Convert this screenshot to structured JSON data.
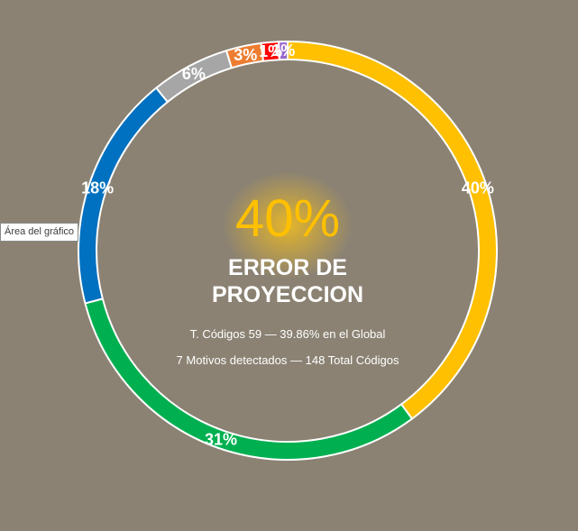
{
  "colors": {
    "background": "#8b8273",
    "ring_border": "#ffffff",
    "label_text": "#ffffff",
    "highlight_text": "#fec000",
    "center_glow": "#f4be1c"
  },
  "tooltip": "Área del gráfico",
  "center": {
    "percent": "40%",
    "title_line1": "ERROR DE",
    "title_line2": "PROYECCION",
    "detail_line1": "T. Códigos 59 — 39.86% en el Global",
    "detail_line2": "7 Motivos detectados — 148 Total Códigos"
  },
  "chart_data": {
    "type": "pie",
    "variant": "doughnut",
    "title": "",
    "legend": "none",
    "slices": [
      {
        "value": 39.86,
        "label": "40%",
        "color": "#fec000"
      },
      {
        "value": 31.08,
        "label": "31%",
        "color": "#00b050"
      },
      {
        "value": 18.24,
        "label": "18%",
        "color": "#0070c0"
      },
      {
        "value": 6.08,
        "label": "6%",
        "color": "#a6a6a6"
      },
      {
        "value": 2.7,
        "label": "3%",
        "color": "#ed7d31"
      },
      {
        "value": 1.35,
        "label": "1%",
        "color": "#ff0000"
      },
      {
        "value": 0.68,
        "label": "1%",
        "color": "#9966cc"
      }
    ]
  }
}
